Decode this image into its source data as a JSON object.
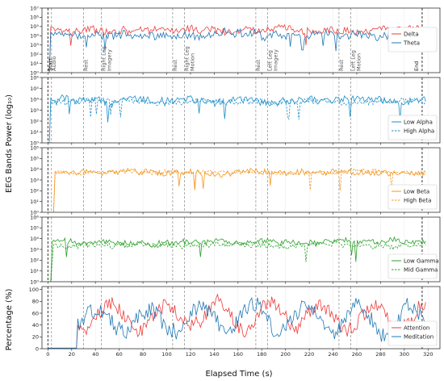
{
  "figure": {
    "xlabel": "Elapsed Time (s)",
    "ylabel_eeg": "EEG Bands Power (log₁₀)",
    "ylabel_pct": "Percentage (%)"
  },
  "chart_data": [
    {
      "type": "line",
      "panel": "delta-theta",
      "yscale": "log",
      "xlim": [
        -5,
        330
      ],
      "ylim": [
        1,
        10000000
      ],
      "yticks": [
        {
          "v": 1,
          "label": "10⁰"
        },
        {
          "v": 10,
          "label": "10¹"
        },
        {
          "v": 100,
          "label": "10²"
        },
        {
          "v": 1000,
          "label": "10³"
        },
        {
          "v": 10000,
          "label": "10⁴"
        },
        {
          "v": 100000,
          "label": "10⁵"
        },
        {
          "v": 1000000,
          "label": "10⁶"
        },
        {
          "v": 10000000,
          "label": "10⁷"
        }
      ],
      "legend_position": "right",
      "series": [
        {
          "name": "Delta",
          "color": "#ef3b3b",
          "dash": "solid",
          "approx_level": 40000,
          "spread": 0.45,
          "start": 2
        },
        {
          "name": "Theta",
          "color": "#1f77b4",
          "dash": "solid",
          "approx_level": 12000,
          "spread": 0.5,
          "start": 2
        }
      ]
    },
    {
      "type": "line",
      "panel": "alpha",
      "yscale": "log",
      "xlim": [
        -5,
        330
      ],
      "ylim": [
        1,
        1000000
      ],
      "yticks": [
        {
          "v": 1,
          "label": "10⁰"
        },
        {
          "v": 10,
          "label": "10¹"
        },
        {
          "v": 100,
          "label": "10²"
        },
        {
          "v": 1000,
          "label": "10³"
        },
        {
          "v": 10000,
          "label": "10⁴"
        },
        {
          "v": 100000,
          "label": "10⁵"
        },
        {
          "v": 1000000,
          "label": "10⁶"
        }
      ],
      "legend_position": "lower right",
      "series": [
        {
          "name": "Low Alpha",
          "color": "#1f8fc9",
          "dash": "solid",
          "approx_level": 8000,
          "spread": 0.4,
          "start": 2
        },
        {
          "name": "High Alpha",
          "color": "#1f8fc9",
          "dash": "dashed",
          "approx_level": 6000,
          "spread": 0.3,
          "start": 2
        }
      ]
    },
    {
      "type": "line",
      "panel": "beta",
      "yscale": "log",
      "xlim": [
        -5,
        330
      ],
      "ylim": [
        1,
        1000000
      ],
      "yticks": [
        {
          "v": 1,
          "label": "10⁰"
        },
        {
          "v": 10,
          "label": "10¹"
        },
        {
          "v": 100,
          "label": "10²"
        },
        {
          "v": 1000,
          "label": "10³"
        },
        {
          "v": 10000,
          "label": "10⁴"
        },
        {
          "v": 100000,
          "label": "10⁵"
        },
        {
          "v": 1000000,
          "label": "10⁶"
        }
      ],
      "legend_position": "lower right",
      "series": [
        {
          "name": "Low Beta",
          "color": "#f5961f",
          "dash": "solid",
          "approx_level": 5000,
          "spread": 0.3,
          "start": 5
        },
        {
          "name": "High Beta",
          "color": "#f5961f",
          "dash": "dashed",
          "approx_level": 5500,
          "spread": 0.22,
          "start": 5
        }
      ]
    },
    {
      "type": "line",
      "panel": "gamma",
      "yscale": "log",
      "xlim": [
        -5,
        330
      ],
      "ylim": [
        1,
        1000000
      ],
      "yticks": [
        {
          "v": 1,
          "label": "10⁰"
        },
        {
          "v": 10,
          "label": "10¹"
        },
        {
          "v": 100,
          "label": "10²"
        },
        {
          "v": 1000,
          "label": "10³"
        },
        {
          "v": 10000,
          "label": "10⁴"
        },
        {
          "v": 100000,
          "label": "10⁵"
        },
        {
          "v": 1000000,
          "label": "10⁶"
        }
      ],
      "legend_position": "lower right",
      "series": [
        {
          "name": "Low Gamma",
          "color": "#2ca02c",
          "dash": "solid",
          "approx_level": 5000,
          "spread": 0.3,
          "start": 3
        },
        {
          "name": "Mid Gamma",
          "color": "#2ca02c",
          "dash": "dashed",
          "approx_level": 2500,
          "spread": 0.3,
          "start": 3
        }
      ]
    },
    {
      "type": "line",
      "panel": "attention-meditation",
      "yscale": "linear",
      "xlim": [
        -5,
        330
      ],
      "ylim": [
        0,
        105
      ],
      "yticks": [
        {
          "v": 0,
          "label": "0"
        },
        {
          "v": 20,
          "label": "20"
        },
        {
          "v": 40,
          "label": "40"
        },
        {
          "v": 60,
          "label": "60"
        },
        {
          "v": 80,
          "label": "80"
        },
        {
          "v": 100,
          "label": "100"
        }
      ],
      "legend_position": "lower right",
      "series": [
        {
          "name": "Attention",
          "color": "#ef3b3b",
          "dash": "solid",
          "approx_level": 55,
          "spread": 20,
          "start": 25
        },
        {
          "name": "Meditation",
          "color": "#1f77b4",
          "dash": "solid",
          "approx_level": 50,
          "spread": 22,
          "start": 25
        }
      ]
    }
  ],
  "x_axis": {
    "ticks": [
      0,
      20,
      40,
      60,
      80,
      100,
      120,
      140,
      160,
      180,
      200,
      220,
      240,
      260,
      280,
      300,
      320
    ]
  },
  "phase_markers": [
    {
      "t": 0,
      "label": "Start",
      "style": "black"
    },
    {
      "t": 3,
      "label": "Audio",
      "style": "gray"
    },
    {
      "t": 30,
      "label": "Rest",
      "style": "gray"
    },
    {
      "t": 45,
      "label": "Right Leg Imagery",
      "style": "gray"
    },
    {
      "t": 105,
      "label": "Rest",
      "style": "gray"
    },
    {
      "t": 115,
      "label": "Right Leg Motion",
      "style": "gray"
    },
    {
      "t": 175,
      "label": "Rest",
      "style": "gray"
    },
    {
      "t": 185,
      "label": "Left Leg Imagery",
      "style": "gray"
    },
    {
      "t": 245,
      "label": "Rest",
      "style": "gray"
    },
    {
      "t": 255,
      "label": "Left Leg Motion",
      "style": "gray"
    },
    {
      "t": 315,
      "label": "End",
      "style": "black"
    }
  ],
  "colors": {
    "axis": "#333333",
    "marker_gray": "#8a8a8a",
    "marker_black": "#222222",
    "grid": "#eeeeee"
  }
}
